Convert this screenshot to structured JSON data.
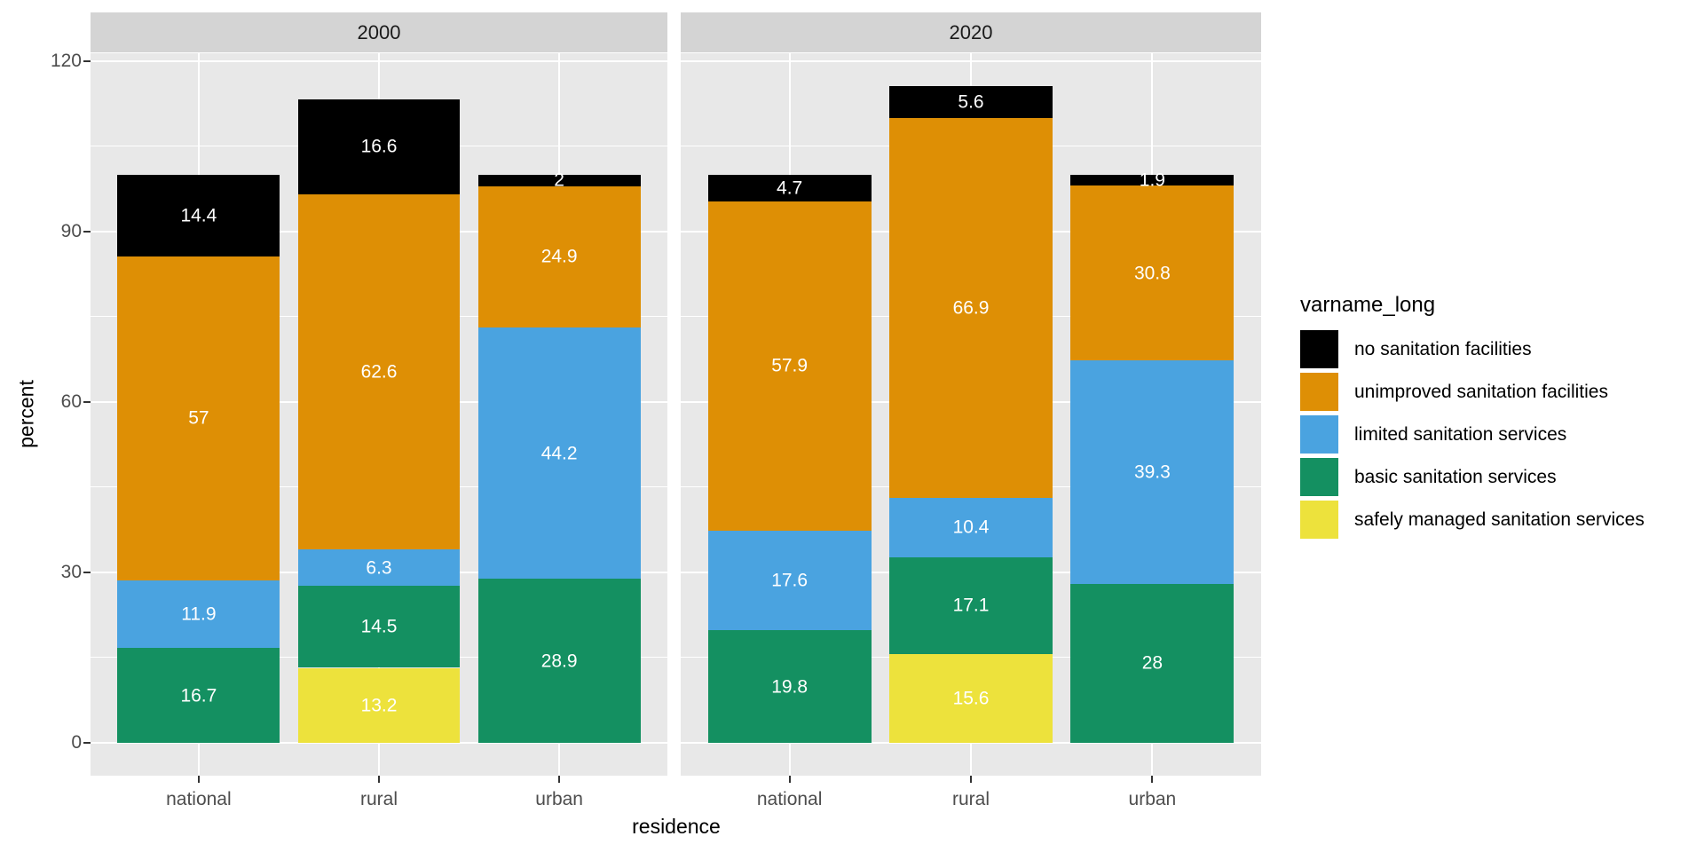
{
  "style": {
    "figure_background": "#FFFFFF",
    "panel_background": "#E8E8E8",
    "strip_background": "#D4D4D4",
    "gridline_color": "#FFFFFF",
    "axis_text_color": "#4D4D4D",
    "tick_mark_color": "#333333",
    "bar_label_color": "#FFFFFF"
  },
  "y_axis": {
    "title": "percent",
    "tick_labels": [
      "120",
      "90",
      "60",
      "30",
      "0"
    ]
  },
  "x_axis": {
    "title": "residence",
    "tick_labels": [
      "national",
      "rural",
      "urban"
    ]
  },
  "legend": {
    "title": "varname_long",
    "items": [
      {
        "label": "no sanitation facilities",
        "color": "#000000"
      },
      {
        "label": "unimproved sanitation facilities",
        "color": "#DE8F05"
      },
      {
        "label": "limited sanitation services",
        "color": "#4AA3E0"
      },
      {
        "label": "basic sanitation services",
        "color": "#149061"
      },
      {
        "label": "safely managed sanitation services",
        "color": "#EDE23C"
      }
    ]
  },
  "chart_data": {
    "type": "bar",
    "stacked": true,
    "xlabel": "residence",
    "ylabel": "percent",
    "y_ticks": [
      0,
      30,
      60,
      90,
      120
    ],
    "y_minor_ticks": [
      15,
      45,
      75,
      105
    ],
    "ylim": [
      0,
      120
    ],
    "categories": [
      "national",
      "rural",
      "urban"
    ],
    "legend_title": "varname_long",
    "stack_order_bottom_to_top": [
      "safely managed sanitation services",
      "basic sanitation services",
      "limited sanitation services",
      "unimproved sanitation facilities",
      "no sanitation facilities"
    ],
    "colors": {
      "no sanitation facilities": "#000000",
      "unimproved sanitation facilities": "#DE8F05",
      "limited sanitation services": "#4AA3E0",
      "basic sanitation services": "#149061",
      "safely managed sanitation services": "#EDE23C"
    },
    "facets": [
      {
        "label": "2000",
        "bars": [
          {
            "category": "national",
            "segments": [
              {
                "series": "basic sanitation services",
                "value": 16.7,
                "label": "16.7"
              },
              {
                "series": "limited sanitation services",
                "value": 11.9,
                "label": "11.9"
              },
              {
                "series": "unimproved sanitation facilities",
                "value": 57,
                "label": "57"
              },
              {
                "series": "no sanitation facilities",
                "value": 14.4,
                "label": "14.4"
              }
            ]
          },
          {
            "category": "rural",
            "segments": [
              {
                "series": "safely managed sanitation services",
                "value": 13.2,
                "label": "13.2"
              },
              {
                "series": "basic sanitation services",
                "value": 14.5,
                "label": "14.5"
              },
              {
                "series": "limited sanitation services",
                "value": 6.3,
                "label": "6.3"
              },
              {
                "series": "unimproved sanitation facilities",
                "value": 62.6,
                "label": "62.6"
              },
              {
                "series": "no sanitation facilities",
                "value": 16.6,
                "label": "16.6"
              }
            ]
          },
          {
            "category": "urban",
            "segments": [
              {
                "series": "basic sanitation services",
                "value": 28.9,
                "label": "28.9"
              },
              {
                "series": "limited sanitation services",
                "value": 44.2,
                "label": "44.2"
              },
              {
                "series": "unimproved sanitation facilities",
                "value": 24.9,
                "label": "24.9"
              },
              {
                "series": "no sanitation facilities",
                "value": 2,
                "label": "2"
              }
            ]
          }
        ]
      },
      {
        "label": "2020",
        "bars": [
          {
            "category": "national",
            "segments": [
              {
                "series": "basic sanitation services",
                "value": 19.8,
                "label": "19.8"
              },
              {
                "series": "limited sanitation services",
                "value": 17.6,
                "label": "17.6"
              },
              {
                "series": "unimproved sanitation facilities",
                "value": 57.9,
                "label": "57.9"
              },
              {
                "series": "no sanitation facilities",
                "value": 4.7,
                "label": "4.7"
              }
            ]
          },
          {
            "category": "rural",
            "segments": [
              {
                "series": "safely managed sanitation services",
                "value": 15.6,
                "label": "15.6"
              },
              {
                "series": "basic sanitation services",
                "value": 17.1,
                "label": "17.1"
              },
              {
                "series": "limited sanitation services",
                "value": 10.4,
                "label": "10.4"
              },
              {
                "series": "unimproved sanitation facilities",
                "value": 66.9,
                "label": "66.9"
              },
              {
                "series": "no sanitation facilities",
                "value": 5.6,
                "label": "5.6"
              }
            ]
          },
          {
            "category": "urban",
            "segments": [
              {
                "series": "basic sanitation services",
                "value": 28,
                "label": "28"
              },
              {
                "series": "limited sanitation services",
                "value": 39.3,
                "label": "39.3"
              },
              {
                "series": "unimproved sanitation facilities",
                "value": 30.8,
                "label": "30.8"
              },
              {
                "series": "no sanitation facilities",
                "value": 1.9,
                "label": "1.9"
              }
            ]
          }
        ]
      }
    ]
  }
}
